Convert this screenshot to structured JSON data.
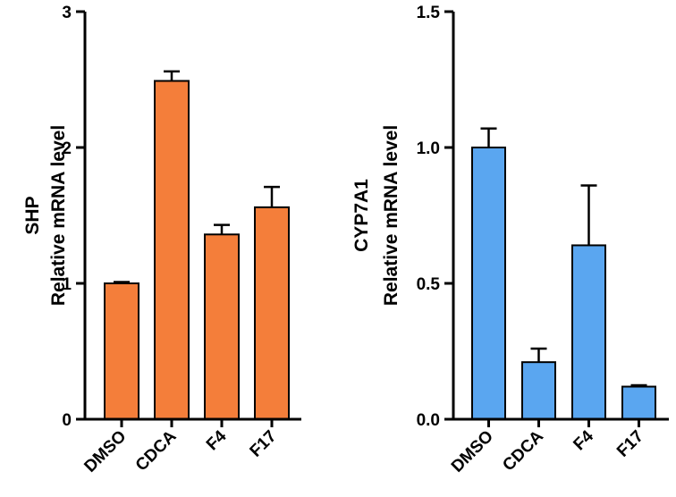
{
  "chart_data": [
    {
      "type": "bar",
      "title": "",
      "ylabel_lines": [
        "SHP",
        "Relative mRNA level"
      ],
      "xlabel": "",
      "categories": [
        "DMSO",
        "CDCA",
        "F4",
        "F17"
      ],
      "values": [
        1.0,
        2.49,
        1.36,
        1.56
      ],
      "errors": [
        0.01,
        0.07,
        0.07,
        0.15
      ],
      "ylim": [
        0,
        3
      ],
      "yticks": [
        0,
        1,
        2,
        3
      ],
      "ytick_labels": [
        "0",
        "1",
        "2",
        "3"
      ],
      "color": "#f47e3a",
      "grid": false
    },
    {
      "type": "bar",
      "title": "",
      "ylabel_lines": [
        "CYP7A1",
        "Relative mRNA level"
      ],
      "xlabel": "",
      "categories": [
        "DMSO",
        "CDCA",
        "F4",
        "F17"
      ],
      "values": [
        1.0,
        0.21,
        0.64,
        0.12
      ],
      "errors": [
        0.07,
        0.05,
        0.22,
        0.005
      ],
      "ylim": [
        0,
        1.5
      ],
      "yticks": [
        0,
        0.5,
        1.0,
        1.5
      ],
      "ytick_labels": [
        "0.0",
        "0.5",
        "1.0",
        "1.5"
      ],
      "color": "#5aa6f0",
      "grid": false
    }
  ]
}
